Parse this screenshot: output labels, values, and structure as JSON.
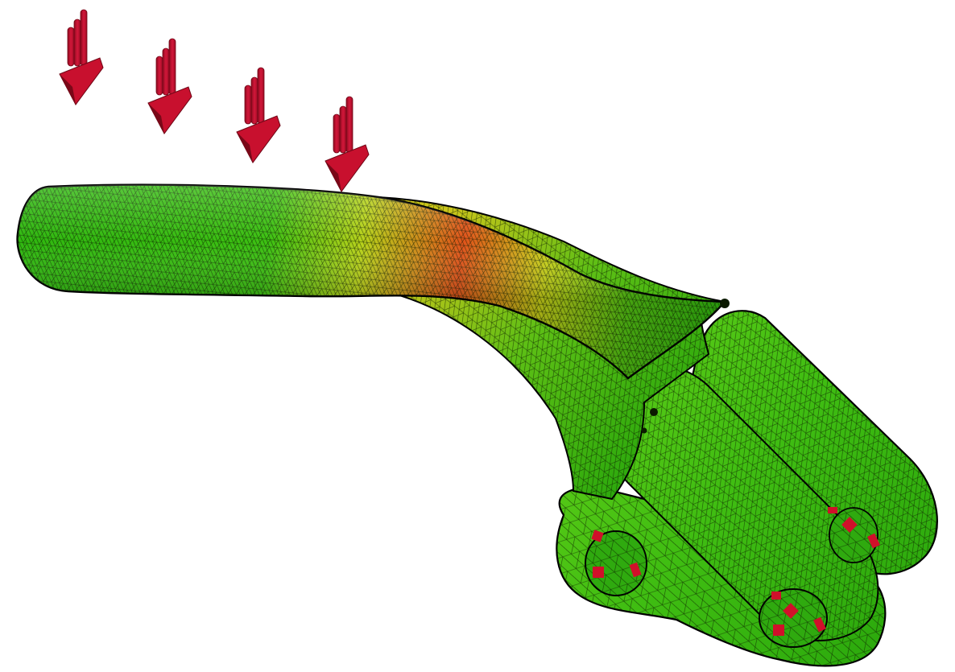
{
  "scene": {
    "description_free": true,
    "colors": {
      "background": "#ffffff",
      "stress_low": "#2fb80f",
      "stress_mid": "#d6d91a",
      "stress_high": "#e0531a",
      "mesh_lines": "#0a1a00",
      "load_arrow": "#c8102e",
      "fixture_marker": "#d0102a",
      "outline": "#000000"
    },
    "icons": {
      "load_arrows": [
        "load-arrow-icon",
        "load-arrow-icon",
        "load-arrow-icon",
        "load-arrow-icon"
      ],
      "fixtures": [
        "fixed-support-icon",
        "fixed-support-icon",
        "fixed-support-icon"
      ]
    },
    "load_arrow_count": 4,
    "mounting_hole_count": 3
  }
}
